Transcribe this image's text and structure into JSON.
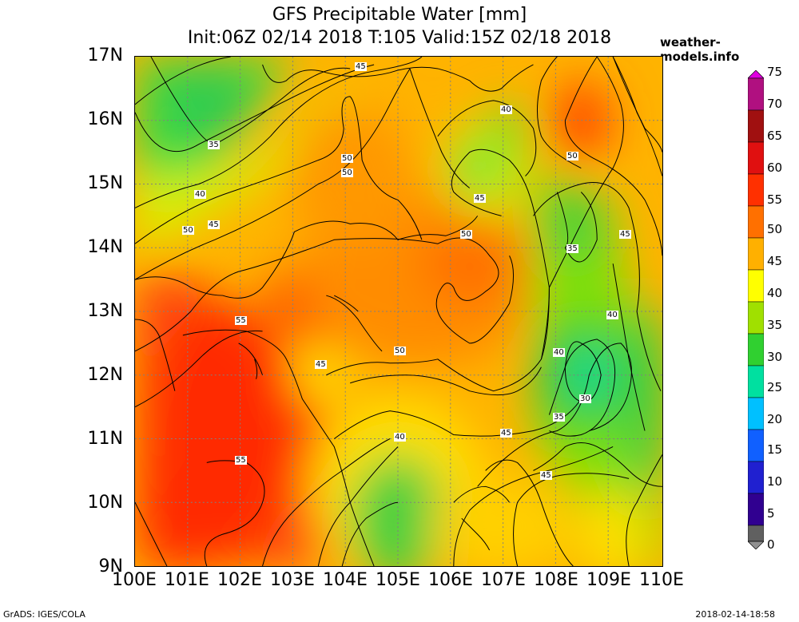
{
  "title": {
    "line1": "GFS Precipitable Water [mm]",
    "line2": "Init:06Z 02/14 2018 T:105 Valid:15Z 02/18 2018"
  },
  "site": "weather-models.info",
  "lat_labels": [
    "17N",
    "16N",
    "15N",
    "14N",
    "13N",
    "12N",
    "11N",
    "10N",
    "9N"
  ],
  "lon_labels": [
    "100E",
    "101E",
    "102E",
    "103E",
    "104E",
    "105E",
    "106E",
    "107E",
    "108E",
    "109E",
    "110E"
  ],
  "colorbar": {
    "labels": [
      "75",
      "70",
      "65",
      "60",
      "55",
      "50",
      "45",
      "40",
      "35",
      "30",
      "25",
      "20",
      "15",
      "10",
      "5",
      "0"
    ],
    "colors": [
      "#e000e0",
      "#b01080",
      "#a01010",
      "#e01010",
      "#ff4000",
      "#ff8000",
      "#ffc000",
      "#ffff00",
      "#a0e000",
      "#30d030",
      "#00e0a0",
      "#00c0ff",
      "#1060ff",
      "#2020d0",
      "#300090",
      "#606060",
      "#909090"
    ]
  },
  "contours": {
    "labels": [
      {
        "text": "45"
      },
      {
        "text": "35"
      },
      {
        "text": "40"
      },
      {
        "text": "45"
      },
      {
        "text": "50"
      },
      {
        "text": "50"
      },
      {
        "text": "50"
      },
      {
        "text": "40"
      },
      {
        "text": "50"
      },
      {
        "text": "50"
      },
      {
        "text": "45"
      },
      {
        "text": "35"
      },
      {
        "text": "45"
      },
      {
        "text": "55"
      },
      {
        "text": "45"
      },
      {
        "text": "50"
      },
      {
        "text": "40"
      },
      {
        "text": "40"
      },
      {
        "text": "30"
      },
      {
        "text": "35"
      },
      {
        "text": "40"
      },
      {
        "text": "45"
      },
      {
        "text": "55"
      },
      {
        "text": "45"
      }
    ]
  },
  "footer": {
    "left": "GrADS: IGES/COLA",
    "right": "2018-02-14-18:58"
  }
}
